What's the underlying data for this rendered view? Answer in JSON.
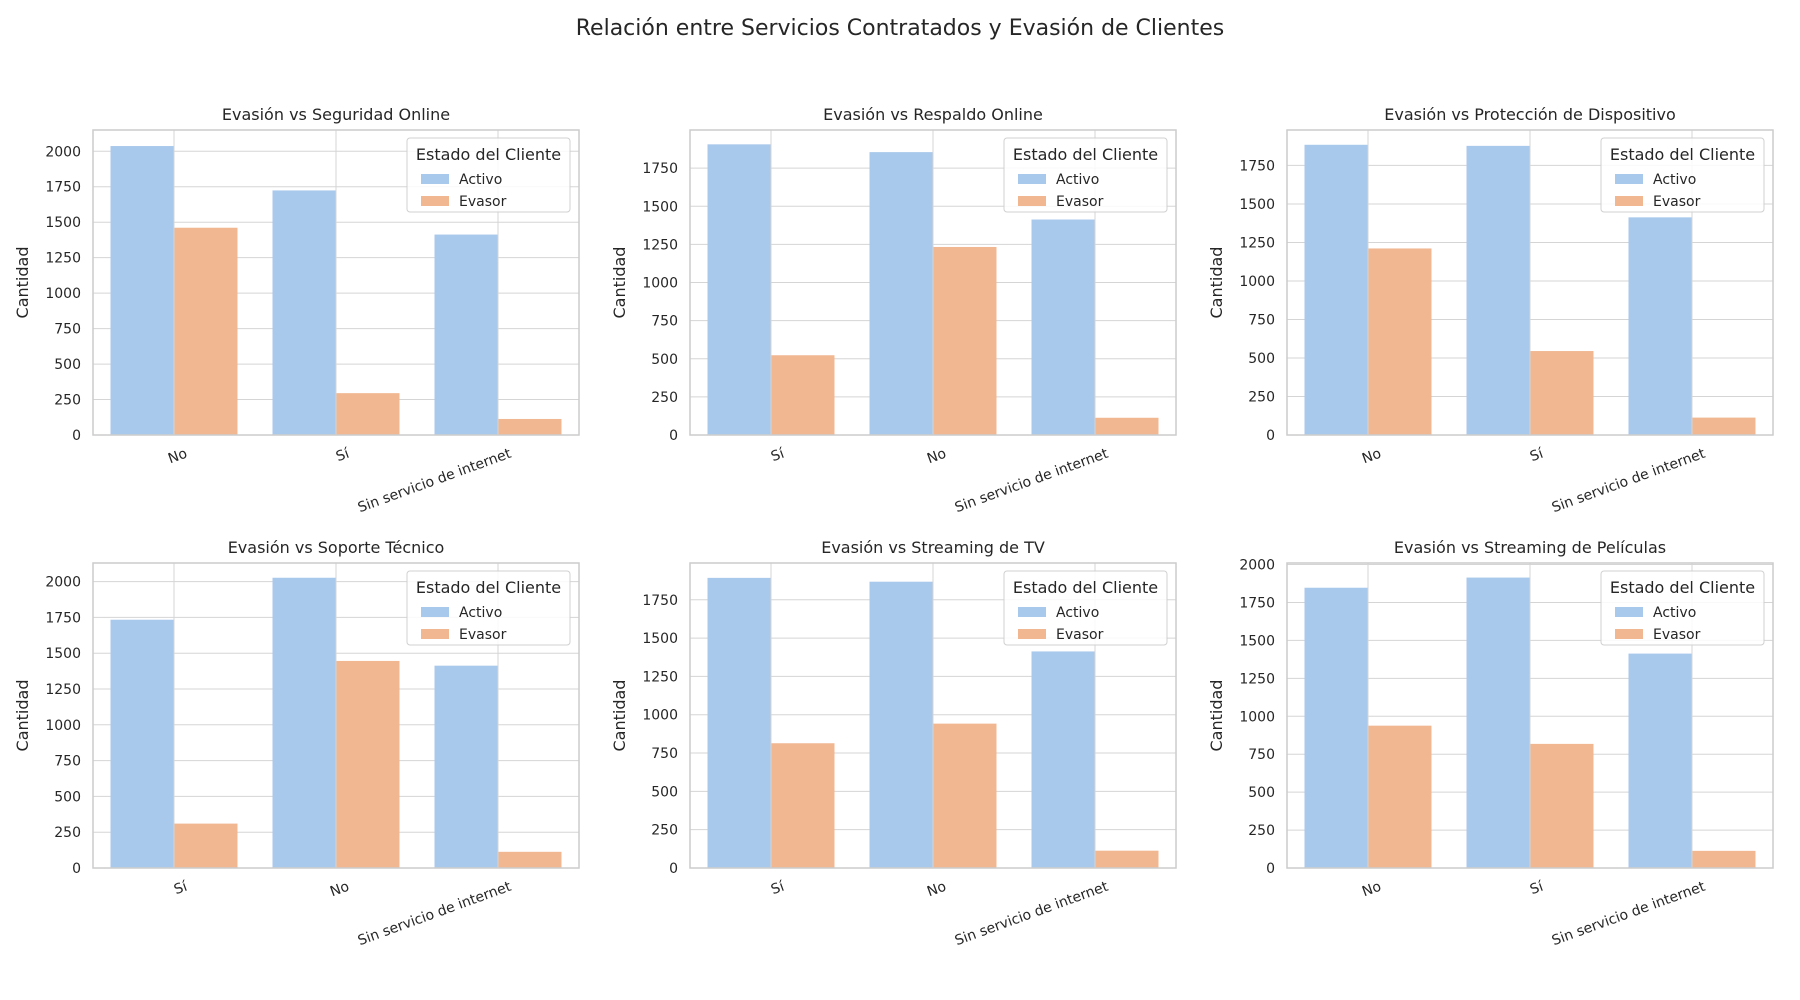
{
  "title": "Relación entre Servicios Contratados y Evasión de Clientes",
  "colors": {
    "Activo": "#a9c9ec",
    "Evasor": "#f0b791",
    "grid": "#d5d5d5",
    "frame": "#cccccc",
    "text": "#262626"
  },
  "chart_data": [
    {
      "type": "bar",
      "title": "Evasión vs Seguridad Online",
      "ylabel": "Cantidad",
      "categories": [
        "No",
        "Sí",
        "Sin servicio de internet"
      ],
      "series": [
        {
          "name": "Activo",
          "values": [
            2037,
            1724,
            1413
          ]
        },
        {
          "name": "Evasor",
          "values": [
            1461,
            295,
            113
          ]
        }
      ],
      "ylim": [
        0,
        2150
      ],
      "yticks": [
        0,
        250,
        500,
        750,
        1000,
        1250,
        1500,
        1750,
        2000
      ],
      "legend": {
        "title": "Estado del Cliente",
        "position": "top-right"
      },
      "grid": true
    },
    {
      "type": "bar",
      "title": "Evasión vs Respaldo Online",
      "ylabel": "Cantidad",
      "categories": [
        "Sí",
        "No",
        "Sin servicio de internet"
      ],
      "series": [
        {
          "name": "Activo",
          "values": [
            1906,
            1855,
            1413
          ]
        },
        {
          "name": "Evasor",
          "values": [
            523,
            1233,
            113
          ]
        }
      ],
      "ylim": [
        0,
        2000
      ],
      "yticks": [
        0,
        250,
        500,
        750,
        1000,
        1250,
        1500,
        1750
      ],
      "legend": {
        "title": "Estado del Cliente",
        "position": "top-right"
      },
      "grid": true
    },
    {
      "type": "bar",
      "title": "Evasión vs Protección de Dispositivo",
      "ylabel": "Cantidad",
      "categories": [
        "No",
        "Sí",
        "Sin servicio de internet"
      ],
      "series": [
        {
          "name": "Activo",
          "values": [
            1884,
            1877,
            1413
          ]
        },
        {
          "name": "Evasor",
          "values": [
            1211,
            545,
            113
          ]
        }
      ],
      "ylim": [
        0,
        1980
      ],
      "yticks": [
        0,
        250,
        500,
        750,
        1000,
        1250,
        1500,
        1750
      ],
      "legend": {
        "title": "Estado del Cliente",
        "position": "top-right"
      },
      "grid": true
    },
    {
      "type": "bar",
      "title": "Evasión vs Soporte Técnico",
      "ylabel": "Cantidad",
      "categories": [
        "Sí",
        "No",
        "Sin servicio de internet"
      ],
      "series": [
        {
          "name": "Activo",
          "values": [
            1734,
            2027,
            1413
          ]
        },
        {
          "name": "Evasor",
          "values": [
            310,
            1446,
            113
          ]
        }
      ],
      "ylim": [
        0,
        2130
      ],
      "yticks": [
        0,
        250,
        500,
        750,
        1000,
        1250,
        1500,
        1750,
        2000
      ],
      "legend": {
        "title": "Estado del Cliente",
        "position": "top-right"
      },
      "grid": true
    },
    {
      "type": "bar",
      "title": "Evasión vs Streaming de TV",
      "ylabel": "Cantidad",
      "categories": [
        "Sí",
        "No",
        "Sin servicio de internet"
      ],
      "series": [
        {
          "name": "Activo",
          "values": [
            1893,
            1868,
            1413
          ]
        },
        {
          "name": "Evasor",
          "values": [
            814,
            942,
            113
          ]
        }
      ],
      "ylim": [
        0,
        1990
      ],
      "yticks": [
        0,
        250,
        500,
        750,
        1000,
        1250,
        1500,
        1750
      ],
      "legend": {
        "title": "Estado del Cliente",
        "position": "top-right"
      },
      "grid": true
    },
    {
      "type": "bar",
      "title": "Evasión vs Streaming de Películas",
      "ylabel": "Cantidad",
      "categories": [
        "No",
        "Sí",
        "Sin servicio de internet"
      ],
      "series": [
        {
          "name": "Activo",
          "values": [
            1847,
            1914,
            1413
          ]
        },
        {
          "name": "Evasor",
          "values": [
            938,
            818,
            113
          ]
        }
      ],
      "ylim": [
        0,
        2010
      ],
      "yticks": [
        0,
        250,
        500,
        750,
        1000,
        1250,
        1500,
        1750,
        2000
      ],
      "legend": {
        "title": "Estado del Cliente",
        "position": "top-right"
      },
      "grid": true
    }
  ]
}
